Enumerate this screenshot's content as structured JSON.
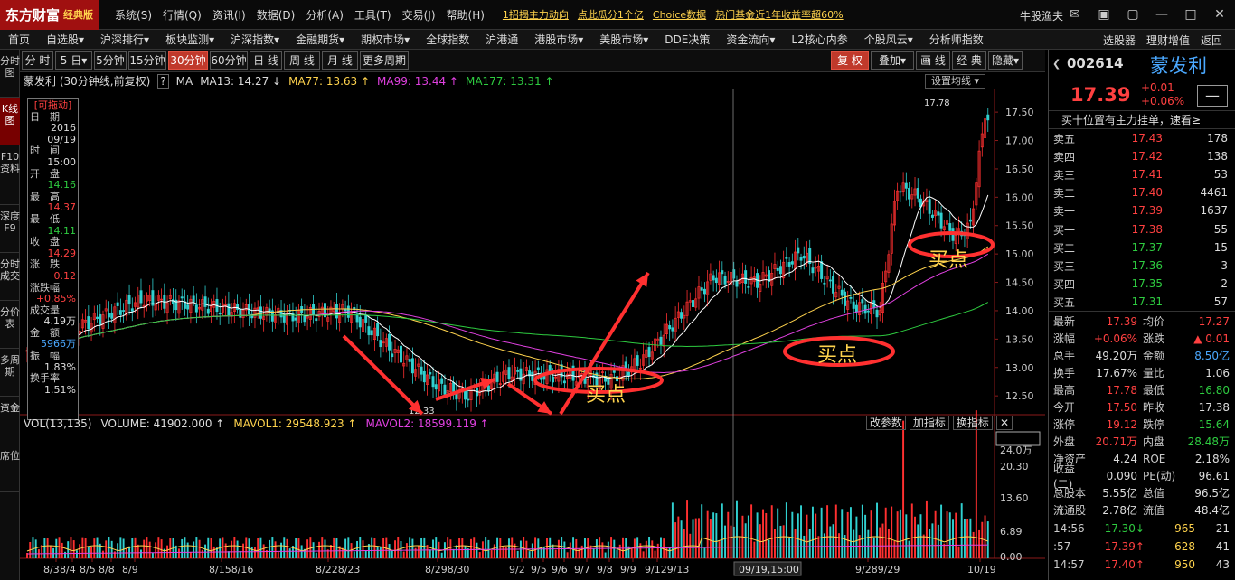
{
  "app": {
    "logo_text": "东方财富",
    "edition": "经典版",
    "username": "牛股渔夫",
    "menus": [
      "系统(S)",
      "行情(Q)",
      "资讯(I)",
      "数据(D)",
      "分析(A)",
      "工具(T)",
      "交易(J)",
      "帮助(H)"
    ],
    "promos": [
      "1招揭主力动向",
      "点此瓜分1个亿",
      "Choice数据",
      "热门基金近1年收益率超60%"
    ]
  },
  "nav": {
    "items": [
      "首页",
      "自选股▾",
      "沪深排行▾",
      "板块监测▾",
      "沪深指数▾",
      "金融期货▾",
      "期权市场▾",
      "全球指数",
      "沪港通",
      "港股市场▾",
      "美股市场▾",
      "DDE决策",
      "资金流向▾",
      "L2核心内参",
      "个股风云▾",
      "分析师指数"
    ],
    "right": [
      "选股器",
      "理财增值",
      "返回"
    ]
  },
  "lefttabs": [
    "分时图",
    "K线图",
    "F10资料",
    "深度F9",
    "分时成交",
    "分价表",
    "多周期",
    "资金",
    "席位"
  ],
  "toolbar": {
    "periods": [
      "分 时",
      "5 日▾",
      "5分钟",
      "15分钟",
      "30分钟",
      "60分钟",
      "日 线",
      "周 线",
      "月 线",
      "更多周期▾"
    ],
    "right": [
      "复 权",
      "叠加▾",
      "画 线",
      "经 典",
      "隐藏▾"
    ]
  },
  "chart": {
    "title": "蒙发利 (30分钟线,前复权)",
    "help": "?",
    "ma_label": "MA",
    "ma13": "MA13: 14.27 ↓",
    "ma77": "MA77: 13.63 ↑",
    "ma99": "MA99: 13.44 ↑",
    "ma177": "MA177: 13.31 ↑",
    "set_ma": "设置均线 ▾",
    "vol_title": "VOL(13,135)",
    "volume": "VOLUME: 41902.000 ↑",
    "mavol1": "MAVOL1: 29548.923 ↑",
    "mavol2": "MAVOL2: 18599.119 ↑",
    "vol_buttons": [
      "改参数",
      "加指标",
      "换指标",
      "✕"
    ],
    "crosshair_label": "09/19,15:00",
    "high_label": "17.78",
    "low_label": "12.33",
    "buy_label": "买点",
    "price_ticks": [
      "17.50",
      "17.00",
      "16.50",
      "16.00",
      "15.50",
      "15.00",
      "14.50",
      "14.00",
      "13.50",
      "13.00",
      "12.50"
    ],
    "vol_ticks": [
      "24.0万",
      "20.30",
      "13.60",
      "6.89",
      "0.00"
    ],
    "date_ticks": [
      "8/3",
      "8/4",
      "8/5",
      "8/8",
      "8/9",
      "8/158/16",
      "8/228/23",
      "8/298/30",
      "9/2",
      "9/5",
      "9/6",
      "9/7",
      "9/8",
      "9/9",
      "9/129/13",
      "9/289/29",
      "10/19"
    ]
  },
  "info": {
    "drag": "[可拖动]",
    "rows": [
      {
        "k": "日　期",
        "v": "2016",
        "c": "white"
      },
      {
        "k": "",
        "v": "09/19",
        "c": "white"
      },
      {
        "k": "时　间",
        "v": "15:00",
        "c": "white"
      },
      {
        "k": "开　盘",
        "v": "14.16",
        "c": "green"
      },
      {
        "k": "最　高",
        "v": "14.37",
        "c": "red"
      },
      {
        "k": "最　低",
        "v": "14.11",
        "c": "green"
      },
      {
        "k": "收　盘",
        "v": "14.29",
        "c": "red"
      },
      {
        "k": "涨　跌",
        "v": "0.12",
        "c": "red"
      },
      {
        "k": "涨跌幅",
        "v": "+0.85%",
        "c": "red"
      },
      {
        "k": "成交量",
        "v": "4.19万",
        "c": "white"
      },
      {
        "k": "金　额",
        "v": "5966万",
        "c": "cyan"
      },
      {
        "k": "振　幅",
        "v": "1.83%",
        "c": "white"
      },
      {
        "k": "换手率",
        "v": "1.51%",
        "c": "white"
      }
    ]
  },
  "quote": {
    "code": "002614",
    "name": "蒙发利",
    "price": "17.39",
    "change": "+0.01",
    "change_pct": "+0.06%",
    "minus": "—",
    "tip": "买十位置有主力挂单，速看≥",
    "asks": [
      {
        "k": "卖五",
        "p": "17.43",
        "q": "178"
      },
      {
        "k": "卖四",
        "p": "17.42",
        "q": "138"
      },
      {
        "k": "卖三",
        "p": "17.41",
        "q": "53"
      },
      {
        "k": "卖二",
        "p": "17.40",
        "q": "4461"
      },
      {
        "k": "卖一",
        "p": "17.39",
        "q": "1637"
      }
    ],
    "bids": [
      {
        "k": "买一",
        "p": "17.38",
        "q": "55",
        "c": "red"
      },
      {
        "k": "买二",
        "p": "17.37",
        "q": "15",
        "c": "green"
      },
      {
        "k": "买三",
        "p": "17.36",
        "q": "3",
        "c": "green"
      },
      {
        "k": "买四",
        "p": "17.35",
        "q": "2",
        "c": "green"
      },
      {
        "k": "买五",
        "p": "17.31",
        "q": "57",
        "c": "green"
      }
    ],
    "stats": [
      {
        "k1": "最新",
        "v1": "17.39",
        "c1": "red",
        "k2": "均价",
        "v2": "17.27",
        "c2": "red"
      },
      {
        "k1": "涨幅",
        "v1": "+0.06%",
        "c1": "red",
        "k2": "涨跌",
        "v2": "▲ 0.01",
        "c2": "red"
      },
      {
        "k1": "总手",
        "v1": "49.20万",
        "c1": "white",
        "k2": "金额",
        "v2": "8.50亿",
        "c2": "cyan"
      },
      {
        "k1": "换手",
        "v1": "17.67%",
        "c1": "white",
        "k2": "量比",
        "v2": "1.06",
        "c2": "white"
      },
      {
        "k1": "最高",
        "v1": "17.78",
        "c1": "red",
        "k2": "最低",
        "v2": "16.80",
        "c2": "green"
      },
      {
        "k1": "今开",
        "v1": "17.50",
        "c1": "red",
        "k2": "昨收",
        "v2": "17.38",
        "c2": "white"
      },
      {
        "k1": "涨停",
        "v1": "19.12",
        "c1": "red",
        "k2": "跌停",
        "v2": "15.64",
        "c2": "green"
      },
      {
        "k1": "外盘",
        "v1": "20.71万",
        "c1": "red",
        "k2": "内盘",
        "v2": "28.48万",
        "c2": "green"
      },
      {
        "k1": "净资产",
        "v1": "4.24",
        "c1": "white",
        "k2": "ROE",
        "v2": "2.18%",
        "c2": "white"
      },
      {
        "k1": "收益(二)",
        "v1": "0.090",
        "c1": "white",
        "k2": "PE(动)",
        "v2": "96.61",
        "c2": "white"
      },
      {
        "k1": "总股本",
        "v1": "5.55亿",
        "c1": "white",
        "k2": "总值",
        "v2": "96.5亿",
        "c2": "white"
      },
      {
        "k1": "流通股",
        "v1": "2.78亿",
        "c1": "white",
        "k2": "流值",
        "v2": "48.4亿",
        "c2": "white"
      }
    ],
    "ticks": [
      {
        "t": "14:56",
        "p": "17.30↓",
        "c": "green",
        "q": "965",
        "n": "21"
      },
      {
        "t": ":57",
        "p": "17.39↑",
        "c": "red",
        "q": "628",
        "n": "41"
      },
      {
        "t": "14:57",
        "p": "17.40↑",
        "c": "red",
        "q": "950",
        "n": "43"
      }
    ]
  }
}
